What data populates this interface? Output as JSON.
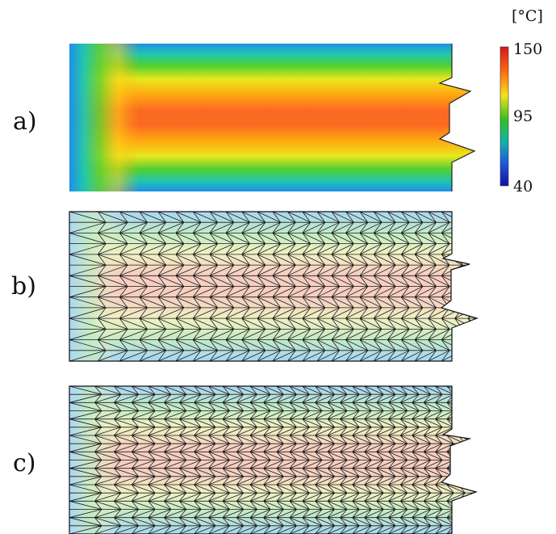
{
  "panels": [
    {
      "label": "a)",
      "kind": "temperature-field"
    },
    {
      "label": "b)",
      "kind": "coarse-mesh"
    },
    {
      "label": "c)",
      "kind": "refined-mesh"
    }
  ],
  "colorbar": {
    "unit": "[°C]",
    "max_label": "150",
    "mid_label": "95",
    "min_label": "40",
    "colors": [
      "#d42020",
      "#ff8a00",
      "#f6e21a",
      "#35c020",
      "#12b3a8",
      "#1e5ad8",
      "#1010a8"
    ]
  }
}
